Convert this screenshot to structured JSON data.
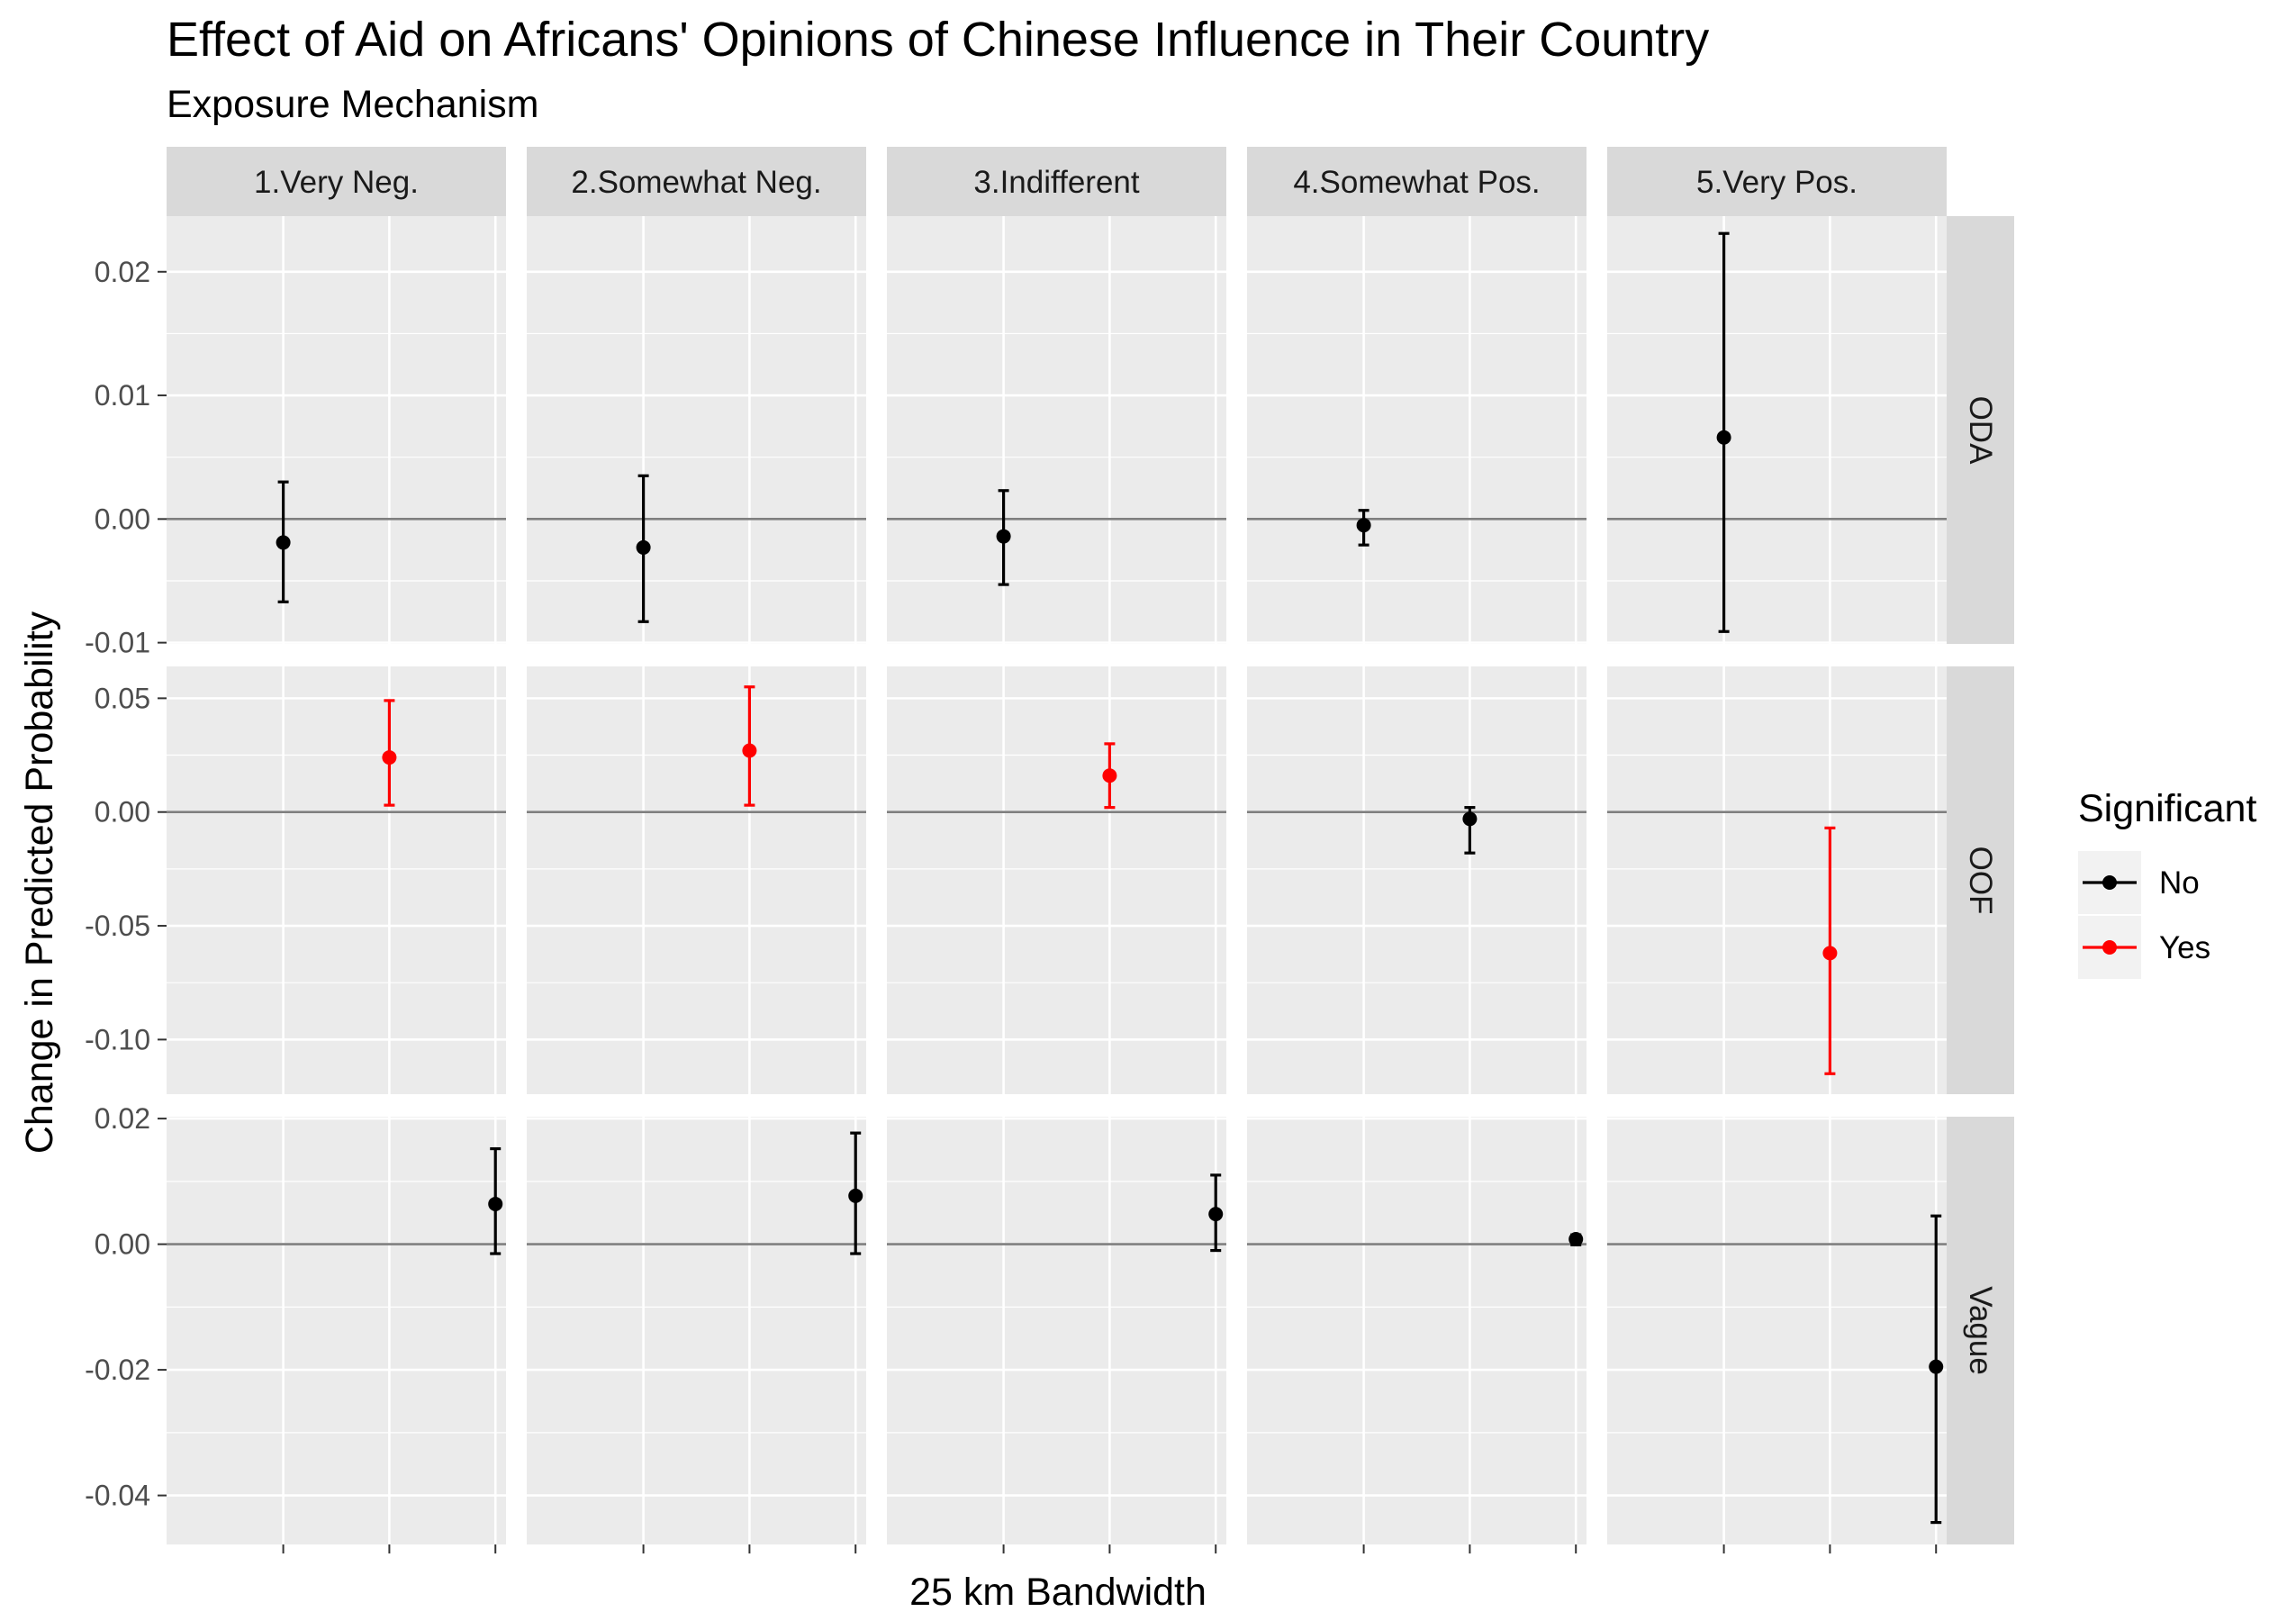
{
  "chart_data": {
    "type": "errorbar",
    "title": "Effect of Aid on Africans' Opinions of Chinese Influence in Their Country",
    "subtitle": "Exposure Mechanism",
    "xlabel": "25 km Bandwidth",
    "ylabel": "Change in Predicted Probability",
    "columns": [
      "1.Very Neg.",
      "2.Somewhat Neg.",
      "3.Indifferent",
      "4.Somewhat Pos.",
      "5.Very Pos."
    ],
    "rows": [
      {
        "name": "ODA",
        "ylim": [
          -0.0101,
          0.0245
        ],
        "ticks": [
          -0.01,
          0.0,
          0.01,
          0.02
        ],
        "tick_labels": [
          "-0.01",
          "0.00",
          "0.01",
          "0.02"
        ]
      },
      {
        "name": "OOF",
        "ylim": [
          -0.124,
          0.064
        ],
        "ticks": [
          -0.1,
          -0.05,
          0.0,
          0.05
        ],
        "tick_labels": [
          "-0.10",
          "-0.05",
          "0.00",
          "0.05"
        ]
      },
      {
        "name": "Vague",
        "ylim": [
          -0.0478,
          0.0203
        ],
        "ticks": [
          -0.04,
          -0.02,
          0.0,
          0.02
        ],
        "tick_labels": [
          "-0.04",
          "-0.02",
          "0.00",
          "0.02"
        ]
      }
    ],
    "x_positions": 3,
    "grid": true,
    "legend": {
      "title": "Significant",
      "position": "right",
      "items": [
        {
          "label": "No",
          "color": "#000000"
        },
        {
          "label": "Yes",
          "color": "#ff0000"
        }
      ]
    },
    "points": [
      {
        "row": "ODA",
        "col": "1.Very Neg.",
        "x": 1,
        "estimate": -0.0019,
        "lower": -0.0067,
        "upper": 0.003,
        "significant": "No"
      },
      {
        "row": "ODA",
        "col": "2.Somewhat Neg.",
        "x": 1,
        "estimate": -0.0023,
        "lower": -0.0083,
        "upper": 0.0035,
        "significant": "No"
      },
      {
        "row": "ODA",
        "col": "3.Indifferent",
        "x": 1,
        "estimate": -0.0014,
        "lower": -0.0053,
        "upper": 0.0023,
        "significant": "No"
      },
      {
        "row": "ODA",
        "col": "4.Somewhat Pos.",
        "x": 1,
        "estimate": -0.0005,
        "lower": -0.0021,
        "upper": 0.0007,
        "significant": "No"
      },
      {
        "row": "ODA",
        "col": "5.Very Pos.",
        "x": 1,
        "estimate": 0.0066,
        "lower": -0.0091,
        "upper": 0.0231,
        "significant": "No"
      },
      {
        "row": "OOF",
        "col": "1.Very Neg.",
        "x": 2,
        "estimate": 0.024,
        "lower": 0.003,
        "upper": 0.049,
        "significant": "Yes"
      },
      {
        "row": "OOF",
        "col": "2.Somewhat Neg.",
        "x": 2,
        "estimate": 0.027,
        "lower": 0.003,
        "upper": 0.055,
        "significant": "Yes"
      },
      {
        "row": "OOF",
        "col": "3.Indifferent",
        "x": 2,
        "estimate": 0.016,
        "lower": 0.002,
        "upper": 0.03,
        "significant": "Yes"
      },
      {
        "row": "OOF",
        "col": "4.Somewhat Pos.",
        "x": 2,
        "estimate": -0.003,
        "lower": -0.018,
        "upper": 0.002,
        "significant": "No"
      },
      {
        "row": "OOF",
        "col": "5.Very Pos.",
        "x": 2,
        "estimate": -0.062,
        "lower": -0.115,
        "upper": -0.007,
        "significant": "Yes"
      },
      {
        "row": "Vague",
        "col": "1.Very Neg.",
        "x": 3,
        "estimate": 0.0064,
        "lower": -0.0015,
        "upper": 0.0152,
        "significant": "No"
      },
      {
        "row": "Vague",
        "col": "2.Somewhat Neg.",
        "x": 3,
        "estimate": 0.0077,
        "lower": -0.0015,
        "upper": 0.0177,
        "significant": "No"
      },
      {
        "row": "Vague",
        "col": "3.Indifferent",
        "x": 3,
        "estimate": 0.0048,
        "lower": -0.001,
        "upper": 0.011,
        "significant": "No"
      },
      {
        "row": "Vague",
        "col": "4.Somewhat Pos.",
        "x": 3,
        "estimate": 0.0008,
        "lower": -0.0001,
        "upper": 0.0015,
        "significant": "No"
      },
      {
        "row": "Vague",
        "col": "5.Very Pos.",
        "x": 3,
        "estimate": -0.0195,
        "lower": -0.0443,
        "upper": 0.0045,
        "significant": "No"
      }
    ]
  }
}
